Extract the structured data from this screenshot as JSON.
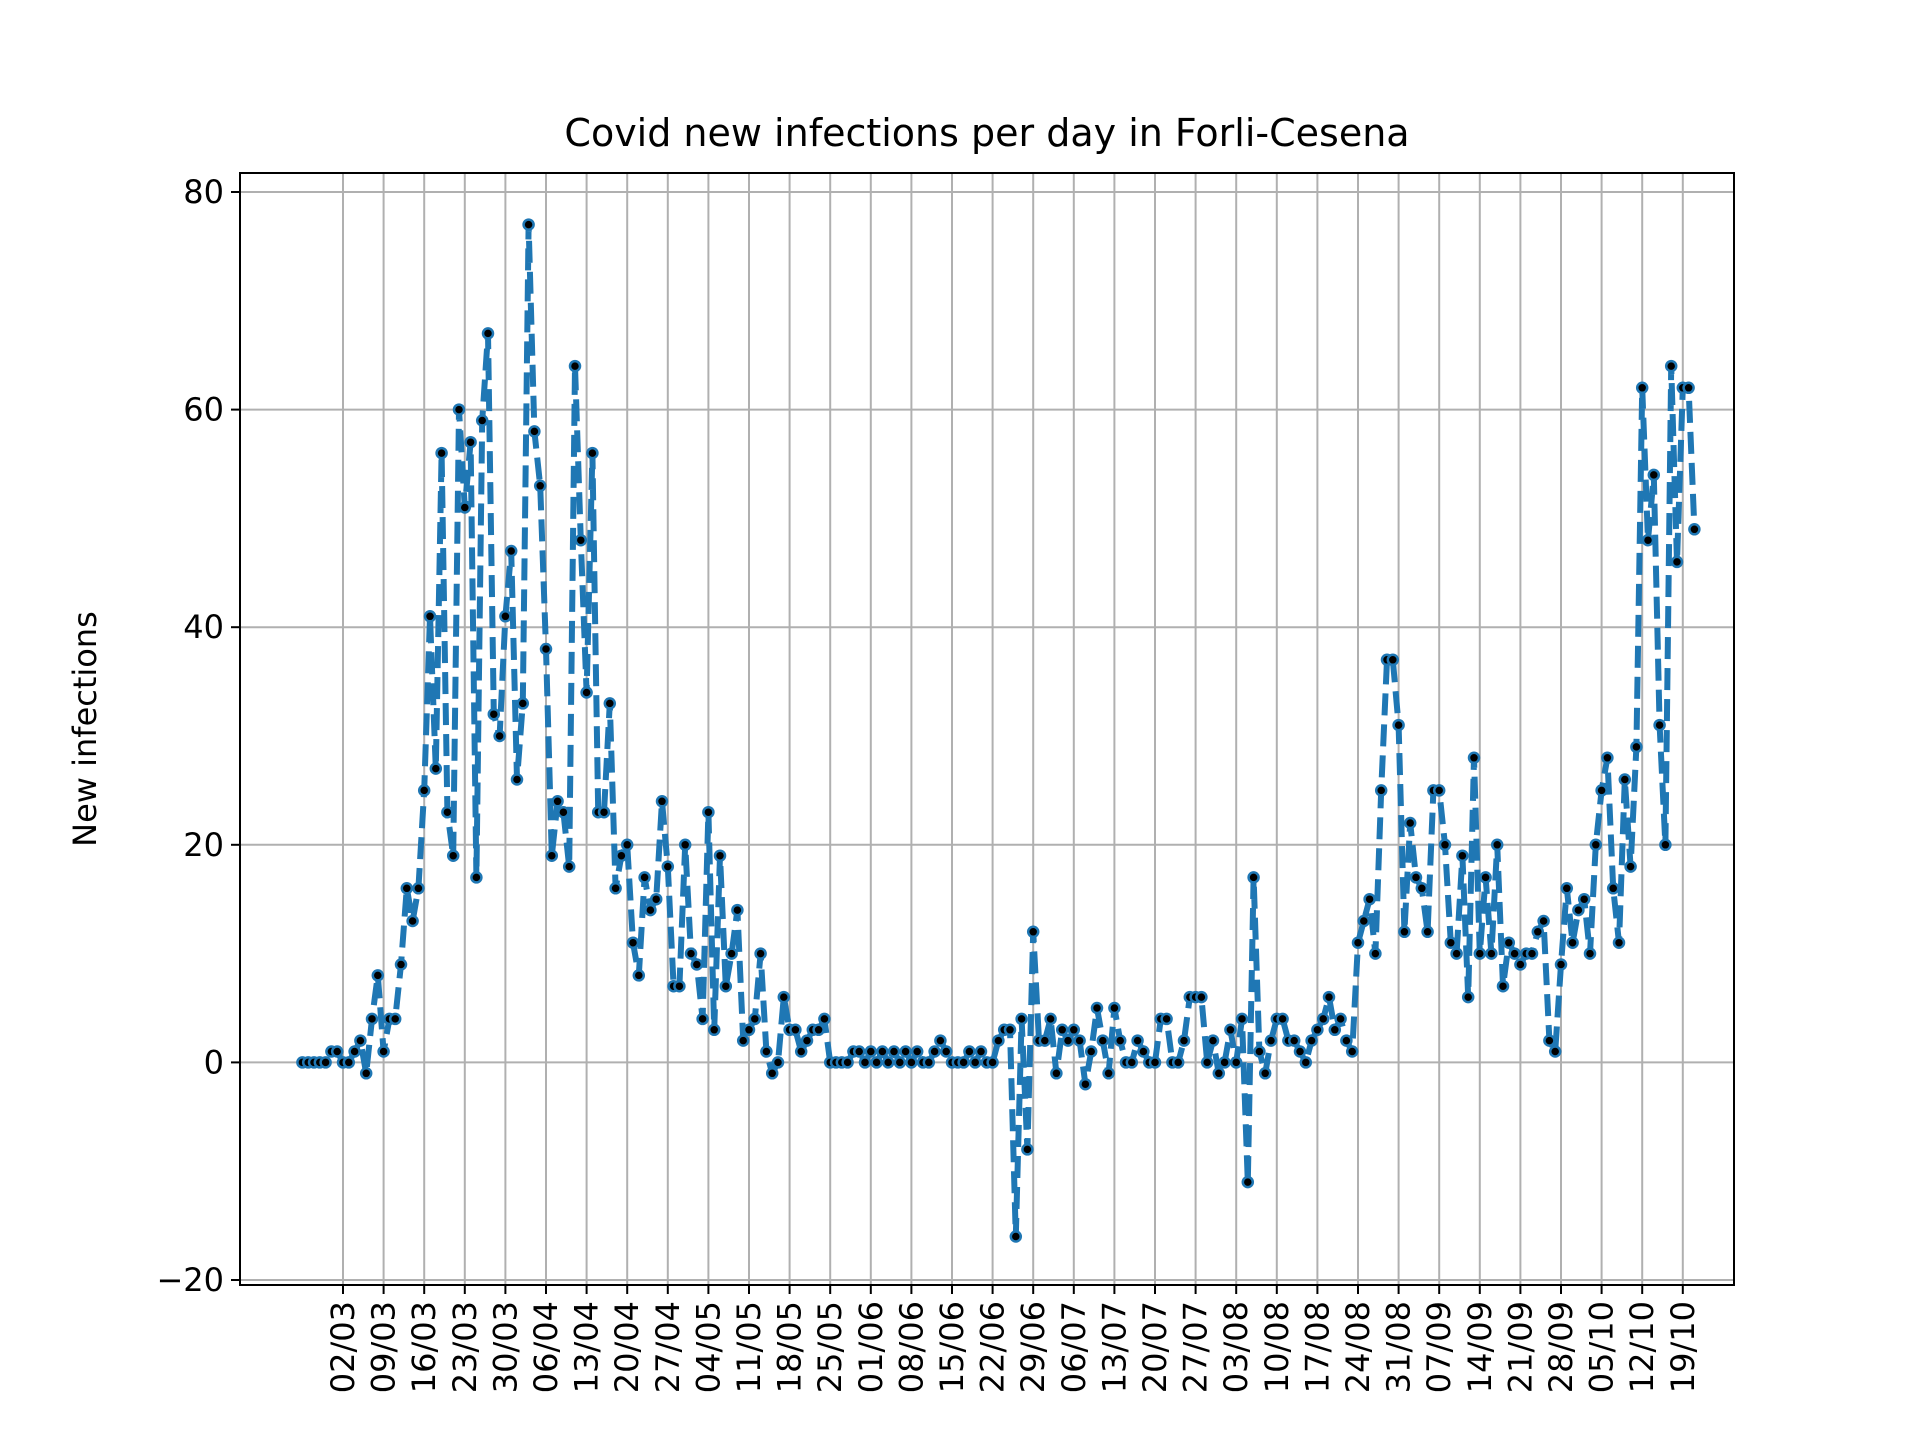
{
  "chart_data": {
    "type": "line",
    "title": "Covid new infections per day in Forli-Cesena",
    "xlabel": "",
    "ylabel": "New infections",
    "ylim": [
      -20,
      80
    ],
    "yticks": [
      -20,
      0,
      20,
      40,
      60,
      80
    ],
    "grid": true,
    "legend": "none",
    "x_tick_labels": [
      "02/03",
      "09/03",
      "16/03",
      "23/03",
      "30/03",
      "06/04",
      "13/04",
      "20/04",
      "27/04",
      "04/05",
      "11/05",
      "18/05",
      "25/05",
      "01/06",
      "08/06",
      "15/06",
      "22/06",
      "29/06",
      "06/07",
      "13/07",
      "20/07",
      "27/07",
      "03/08",
      "10/08",
      "17/08",
      "24/08",
      "31/08",
      "07/09",
      "14/09",
      "21/09",
      "28/09",
      "05/10",
      "12/10",
      "19/10"
    ],
    "x_start_date": "2020-02-24",
    "style": {
      "line_color": "#1f77b4",
      "marker_color": "#000000",
      "line_style": "dashed"
    },
    "series": [
      {
        "values": [
          0,
          0,
          0,
          0,
          0,
          1,
          1,
          0,
          0,
          1,
          2,
          -1,
          4,
          8,
          1,
          4,
          4,
          9,
          16,
          13,
          16,
          25,
          41,
          27,
          56,
          23,
          19,
          60,
          51,
          57,
          17,
          59,
          67,
          32,
          30,
          41,
          47,
          26,
          33,
          77,
          58,
          53,
          38,
          19,
          24,
          23,
          18,
          64,
          48,
          34,
          56,
          23,
          23,
          33,
          16,
          19,
          20,
          11,
          8,
          17,
          14,
          15,
          24,
          18,
          7,
          7,
          20,
          10,
          9,
          4,
          23,
          3,
          19,
          7,
          10,
          14,
          2,
          3,
          4,
          10,
          1,
          -1,
          0,
          6,
          3,
          3,
          1,
          2,
          3,
          3,
          4,
          0,
          0,
          0,
          0,
          1,
          1,
          0,
          1,
          0,
          1,
          0,
          1,
          0,
          1,
          0,
          1,
          0,
          0,
          1,
          2,
          1,
          0,
          0,
          0,
          1,
          0,
          1,
          0,
          0,
          2,
          3,
          3,
          -16,
          4,
          -8,
          12,
          2,
          2,
          4,
          -1,
          3,
          2,
          3,
          2,
          -2,
          1,
          5,
          2,
          -1,
          5,
          2,
          0,
          0,
          2,
          1,
          0,
          0,
          4,
          4,
          0,
          0,
          2,
          6,
          6,
          6,
          0,
          2,
          -1,
          0,
          3,
          0,
          4,
          -11,
          17,
          1,
          -1,
          2,
          4,
          4,
          2,
          2,
          1,
          0,
          2,
          3,
          4,
          6,
          3,
          4,
          2,
          1,
          11,
          13,
          15,
          10,
          25,
          37,
          37,
          31,
          12,
          22,
          17,
          16,
          12,
          25,
          25,
          20,
          11,
          10,
          19,
          6,
          28,
          10,
          17,
          10,
          20,
          7,
          11,
          10,
          9,
          10,
          10,
          12,
          13,
          2,
          1,
          9,
          16,
          11,
          14,
          15,
          10,
          20,
          25,
          28,
          16,
          11,
          26,
          18,
          29,
          62,
          48,
          54,
          31,
          20,
          64,
          46,
          62,
          62,
          49
        ]
      }
    ]
  }
}
